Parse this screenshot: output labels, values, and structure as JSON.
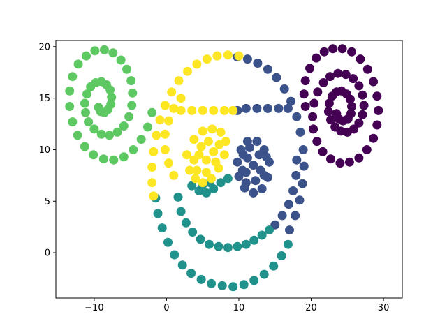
{
  "chart_data": {
    "type": "scatter",
    "title": "",
    "xlabel": "",
    "ylabel": "",
    "xlim": [
      -15.3,
      32.6
    ],
    "ylim": [
      -4.4,
      20.6
    ],
    "xticks": [
      -10,
      0,
      10,
      20,
      30
    ],
    "yticks": [
      0,
      5,
      10,
      15,
      20
    ],
    "xtick_labels": [
      "−10",
      "0",
      "10",
      "20",
      "30"
    ],
    "ytick_labels": [
      "0",
      "5",
      "10",
      "15",
      "20"
    ],
    "grid": false,
    "legend": "none",
    "marker_color_scale": "viridis",
    "series": [
      {
        "color": "#440154",
        "description_shape": "spiral",
        "points": [
          [
            19.2,
            14.2
          ],
          [
            19.0,
            15.4
          ],
          [
            19.2,
            16.7
          ],
          [
            19.8,
            17.9
          ],
          [
            20.7,
            18.9
          ],
          [
            21.8,
            19.5
          ],
          [
            23.0,
            19.8
          ],
          [
            24.3,
            19.8
          ],
          [
            25.6,
            19.5
          ],
          [
            26.8,
            18.8
          ],
          [
            27.8,
            17.8
          ],
          [
            28.6,
            16.6
          ],
          [
            29.1,
            15.2
          ],
          [
            29.3,
            13.8
          ],
          [
            29.1,
            12.4
          ],
          [
            28.6,
            11.1
          ],
          [
            27.7,
            10.0
          ],
          [
            26.6,
            9.2
          ],
          [
            25.3,
            8.8
          ],
          [
            24.0,
            8.7
          ],
          [
            22.7,
            9.1
          ],
          [
            21.6,
            9.8
          ],
          [
            20.8,
            10.8
          ],
          [
            20.3,
            12.0
          ],
          [
            20.2,
            13.2
          ],
          [
            20.4,
            14.5
          ],
          [
            20.9,
            15.6
          ],
          [
            21.7,
            16.5
          ],
          [
            22.6,
            17.1
          ],
          [
            23.7,
            17.4
          ],
          [
            24.8,
            17.3
          ],
          [
            25.8,
            16.9
          ],
          [
            26.6,
            16.2
          ],
          [
            27.1,
            15.3
          ],
          [
            27.3,
            14.3
          ],
          [
            27.1,
            13.4
          ],
          [
            26.6,
            12.6
          ],
          [
            25.9,
            12.0
          ],
          [
            25.0,
            11.7
          ],
          [
            24.1,
            11.8
          ],
          [
            23.3,
            12.2
          ],
          [
            22.7,
            12.9
          ],
          [
            22.4,
            13.7
          ],
          [
            22.5,
            14.5
          ],
          [
            22.9,
            15.2
          ],
          [
            23.5,
            15.6
          ],
          [
            24.2,
            15.7
          ],
          [
            24.9,
            15.4
          ],
          [
            25.4,
            14.9
          ],
          [
            25.6,
            14.2
          ],
          [
            25.5,
            13.5
          ],
          [
            25.1,
            13.0
          ],
          [
            24.4,
            12.8
          ],
          [
            23.8,
            13.0
          ],
          [
            23.5,
            13.5
          ]
        ]
      },
      {
        "color": "#3b528b",
        "description_shape": "right arcs, bar and filled oval",
        "points": [
          [
            9.8,
            19.0
          ],
          [
            11.2,
            18.8
          ],
          [
            12.6,
            18.4
          ],
          [
            14.0,
            17.8
          ],
          [
            15.2,
            17.0
          ],
          [
            16.3,
            15.9
          ],
          [
            17.2,
            14.7
          ],
          [
            18.0,
            13.2
          ],
          [
            18.5,
            11.7
          ],
          [
            18.9,
            10.0
          ],
          [
            19.0,
            8.4
          ],
          [
            18.8,
            6.7
          ],
          [
            18.4,
            5.1
          ],
          [
            17.8,
            3.6
          ],
          [
            17.0,
            2.2
          ],
          [
            18.0,
            9.0
          ],
          [
            17.9,
            7.5
          ],
          [
            17.5,
            6.0
          ],
          [
            16.9,
            4.7
          ],
          [
            16.0,
            3.6
          ],
          [
            15.0,
            2.7
          ],
          [
            11.0,
            14.0
          ],
          [
            12.5,
            14.0
          ],
          [
            14.0,
            14.0
          ],
          [
            15.5,
            14.0
          ],
          [
            16.8,
            14.0
          ],
          [
            9.8,
            13.8
          ],
          [
            12.5,
            10.8
          ],
          [
            13.5,
            10.0
          ],
          [
            14.2,
            8.8
          ],
          [
            14.0,
            7.3
          ],
          [
            13.2,
            6.2
          ],
          [
            12.0,
            5.8
          ],
          [
            10.8,
            6.3
          ],
          [
            10.0,
            7.4
          ],
          [
            9.8,
            8.8
          ],
          [
            10.3,
            10.0
          ],
          [
            11.2,
            10.8
          ],
          [
            12.0,
            8.5
          ],
          [
            11.2,
            9.2
          ],
          [
            13.0,
            8.0
          ],
          [
            12.3,
            7.0
          ],
          [
            11.0,
            7.8
          ],
          [
            12.8,
            9.5
          ],
          [
            13.5,
            7.5
          ],
          [
            11.5,
            10.2
          ],
          [
            10.6,
            9.5
          ],
          [
            10.5,
            8.0
          ],
          [
            11.0,
            6.8
          ],
          [
            13.8,
            9.3
          ]
        ]
      },
      {
        "color": "#21918c",
        "description_shape": "lower arcs and small blob",
        "points": [
          [
            -1.5,
            5.3
          ],
          [
            -1.2,
            3.8
          ],
          [
            -0.6,
            2.4
          ],
          [
            0.2,
            1.0
          ],
          [
            1.1,
            -0.2
          ],
          [
            2.2,
            -1.2
          ],
          [
            3.4,
            -2.0
          ],
          [
            4.8,
            -2.6
          ],
          [
            6.2,
            -3.0
          ],
          [
            7.7,
            -3.2
          ],
          [
            9.2,
            -3.3
          ],
          [
            10.7,
            -3.1
          ],
          [
            12.1,
            -2.7
          ],
          [
            13.5,
            -2.1
          ],
          [
            14.8,
            -1.3
          ],
          [
            15.9,
            -0.3
          ],
          [
            16.8,
            0.8
          ],
          [
            1.6,
            5.4
          ],
          [
            2.0,
            4.0
          ],
          [
            2.7,
            2.9
          ],
          [
            3.6,
            2.0
          ],
          [
            4.7,
            1.3
          ],
          [
            5.9,
            0.8
          ],
          [
            7.2,
            0.6
          ],
          [
            8.5,
            0.5
          ],
          [
            9.8,
            0.6
          ],
          [
            11.0,
            0.8
          ],
          [
            12.1,
            1.2
          ],
          [
            13.2,
            1.7
          ],
          [
            14.2,
            2.2
          ],
          [
            3.5,
            6.5
          ],
          [
            4.5,
            6.0
          ],
          [
            5.5,
            5.8
          ],
          [
            6.5,
            6.2
          ],
          [
            7.5,
            6.8
          ],
          [
            8.5,
            7.2
          ],
          [
            5.0,
            6.6
          ],
          [
            6.0,
            6.8
          ]
        ]
      },
      {
        "color": "#5ec962",
        "description_shape": "spiral",
        "points": [
          [
            -2.0,
            13.6
          ],
          [
            -2.6,
            12.2
          ],
          [
            -3.5,
            11.0
          ],
          [
            -4.6,
            10.0
          ],
          [
            -5.9,
            9.3
          ],
          [
            -7.3,
            9.0
          ],
          [
            -8.7,
            9.1
          ],
          [
            -10.1,
            9.5
          ],
          [
            -11.3,
            10.3
          ],
          [
            -12.3,
            11.4
          ],
          [
            -13.0,
            12.7
          ],
          [
            -13.4,
            14.2
          ],
          [
            -13.4,
            15.7
          ],
          [
            -13.0,
            17.1
          ],
          [
            -12.2,
            18.3
          ],
          [
            -11.1,
            19.1
          ],
          [
            -9.9,
            19.6
          ],
          [
            -8.6,
            19.7
          ],
          [
            -7.4,
            19.4
          ],
          [
            -6.3,
            18.7
          ],
          [
            -5.5,
            17.8
          ],
          [
            -4.9,
            16.7
          ],
          [
            -4.7,
            15.5
          ],
          [
            -4.8,
            14.3
          ],
          [
            -5.2,
            13.2
          ],
          [
            -5.9,
            12.3
          ],
          [
            -6.8,
            11.7
          ],
          [
            -7.9,
            11.4
          ],
          [
            -9.0,
            11.5
          ],
          [
            -10.0,
            12.0
          ],
          [
            -10.8,
            12.7
          ],
          [
            -11.2,
            13.6
          ],
          [
            -11.3,
            14.5
          ],
          [
            -11.0,
            15.4
          ],
          [
            -10.5,
            16.1
          ],
          [
            -9.8,
            16.5
          ],
          [
            -9.0,
            16.6
          ],
          [
            -8.3,
            16.3
          ],
          [
            -7.8,
            15.8
          ],
          [
            -7.6,
            15.1
          ],
          [
            -7.7,
            14.4
          ],
          [
            -8.1,
            13.9
          ],
          [
            -8.6,
            13.6
          ],
          [
            -9.1,
            13.7
          ],
          [
            -9.4,
            14.1
          ]
        ]
      },
      {
        "color": "#fde725",
        "description_shape": "upper-left arcs, bar and filled oval",
        "points": [
          [
            10.0,
            19.1
          ],
          [
            8.5,
            19.2
          ],
          [
            7.0,
            19.1
          ],
          [
            5.6,
            18.8
          ],
          [
            4.2,
            18.3
          ],
          [
            2.9,
            17.6
          ],
          [
            1.7,
            16.7
          ],
          [
            0.7,
            15.6
          ],
          [
            -0.2,
            14.3
          ],
          [
            -0.9,
            12.9
          ],
          [
            -1.4,
            11.4
          ],
          [
            -1.8,
            9.8
          ],
          [
            -2.0,
            8.3
          ],
          [
            -2.0,
            6.8
          ],
          [
            -1.8,
            5.5
          ],
          [
            2.0,
            15.0
          ],
          [
            1.0,
            14.0
          ],
          [
            0.3,
            12.8
          ],
          [
            -0.2,
            11.5
          ],
          [
            -0.2,
            10.0
          ],
          [
            0.3,
            8.7
          ],
          [
            1.0,
            7.5
          ],
          [
            2.0,
            13.8
          ],
          [
            3.5,
            13.8
          ],
          [
            5.0,
            13.8
          ],
          [
            6.5,
            13.8
          ],
          [
            8.0,
            13.8
          ],
          [
            9.2,
            13.8
          ],
          [
            2.8,
            9.5
          ],
          [
            3.2,
            8.0
          ],
          [
            4.0,
            7.2
          ],
          [
            5.0,
            6.8
          ],
          [
            6.2,
            7.2
          ],
          [
            7.2,
            8.2
          ],
          [
            8.0,
            9.5
          ],
          [
            8.2,
            10.8
          ],
          [
            7.5,
            11.7
          ],
          [
            6.3,
            12.0
          ],
          [
            5.0,
            11.8
          ],
          [
            3.8,
            11.0
          ],
          [
            4.5,
            9.5
          ],
          [
            5.5,
            9.0
          ],
          [
            6.5,
            9.8
          ],
          [
            5.8,
            10.8
          ],
          [
            4.8,
            10.3
          ],
          [
            6.8,
            8.8
          ],
          [
            3.8,
            9.0
          ],
          [
            7.3,
            10.5
          ],
          [
            4.2,
            8.0
          ],
          [
            5.5,
            7.8
          ]
        ]
      }
    ]
  }
}
